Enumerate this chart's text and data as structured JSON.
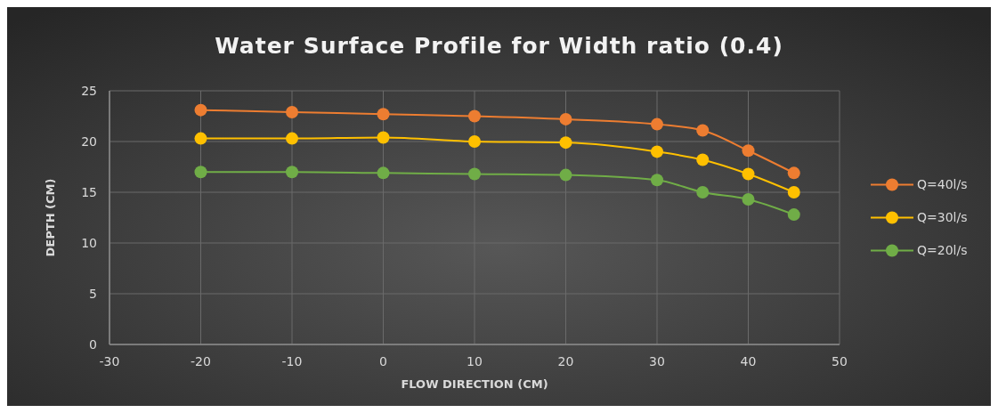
{
  "chart_data": {
    "type": "line",
    "title": "Water Surface Profile for Width ratio (0.4)",
    "xlabel": "FLOW DIRECTION (CM)",
    "ylabel": "DEPTH (CM)",
    "x": [
      -20,
      -10,
      0,
      10,
      20,
      30,
      35,
      40,
      45
    ],
    "series": [
      {
        "name": "Q=40l/s",
        "color": "#ed7d31",
        "values": [
          23.1,
          22.9,
          22.7,
          22.5,
          22.2,
          21.7,
          21.1,
          19.1,
          16.9
        ]
      },
      {
        "name": "Q=30l/s",
        "color": "#ffc000",
        "values": [
          20.3,
          20.3,
          20.4,
          20.0,
          19.9,
          19.0,
          18.2,
          16.8,
          15.0
        ]
      },
      {
        "name": "Q=20l/s",
        "color": "#70ad47",
        "values": [
          17.0,
          17.0,
          16.9,
          16.8,
          16.7,
          16.2,
          15.0,
          14.3,
          12.8
        ]
      }
    ],
    "xlim": [
      -30,
      50
    ],
    "xticks": [
      -30,
      -20,
      -10,
      0,
      10,
      20,
      30,
      40,
      50
    ],
    "ylim": [
      0,
      25
    ],
    "yticks": [
      0,
      5,
      10,
      15,
      20,
      25
    ],
    "grid": true,
    "legend": "right",
    "marker": "circle",
    "line_style": "solid"
  }
}
